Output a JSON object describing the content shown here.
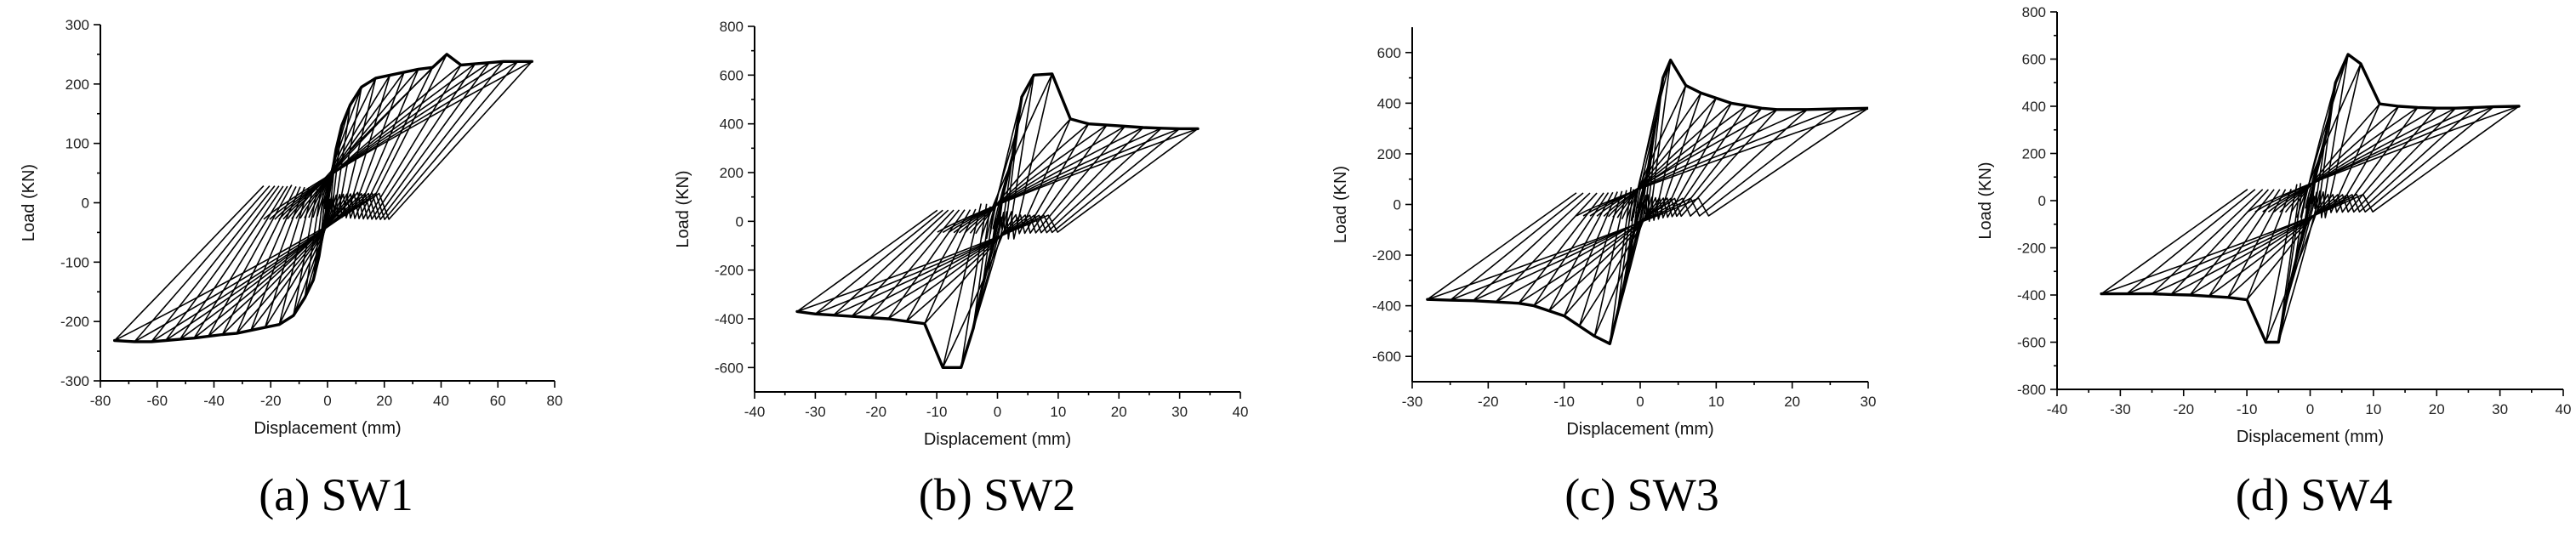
{
  "figure": {
    "captions": [
      "(a) SW1",
      "(b) SW2",
      "(c) SW3",
      "(d) SW4"
    ]
  },
  "chart_data": [
    {
      "type": "line",
      "title": "SW1",
      "caption": "(a) SW1",
      "xlabel": "Displacement (mm)",
      "ylabel": "Load (KN)",
      "xlim": [
        -80,
        80
      ],
      "ylim": [
        -300,
        300
      ],
      "xticks": [
        -80,
        -60,
        -40,
        -20,
        0,
        20,
        40,
        60,
        80
      ],
      "yticks": [
        -300,
        -200,
        -100,
        0,
        100,
        200,
        300
      ],
      "cycles": [
        {
          "peak_disp": 3,
          "peak_load": 90,
          "neg_disp": -3,
          "neg_load": -90
        },
        {
          "peak_disp": 5,
          "peak_load": 130,
          "neg_disp": -5,
          "neg_load": -130
        },
        {
          "peak_disp": 8,
          "peak_load": 165,
          "neg_disp": -8,
          "neg_load": -160
        },
        {
          "peak_disp": 12,
          "peak_load": 195,
          "neg_disp": -12,
          "neg_load": -190
        },
        {
          "peak_disp": 17,
          "peak_load": 210,
          "neg_disp": -17,
          "neg_load": -205
        },
        {
          "peak_disp": 22,
          "peak_load": 215,
          "neg_disp": -22,
          "neg_load": -210
        },
        {
          "peak_disp": 27,
          "peak_load": 220,
          "neg_disp": -27,
          "neg_load": -215
        },
        {
          "peak_disp": 32,
          "peak_load": 225,
          "neg_disp": -32,
          "neg_load": -220
        },
        {
          "peak_disp": 37,
          "peak_load": 228,
          "neg_disp": -37,
          "neg_load": -222
        },
        {
          "peak_disp": 42,
          "peak_load": 250,
          "neg_disp": -42,
          "neg_load": -225
        },
        {
          "peak_disp": 47,
          "peak_load": 232,
          "neg_disp": -47,
          "neg_load": -228
        },
        {
          "peak_disp": 52,
          "peak_load": 234,
          "neg_disp": -52,
          "neg_load": -230
        },
        {
          "peak_disp": 57,
          "peak_load": 236,
          "neg_disp": -57,
          "neg_load": -232
        },
        {
          "peak_disp": 62,
          "peak_load": 238,
          "neg_disp": -62,
          "neg_load": -234
        },
        {
          "peak_disp": 67,
          "peak_load": 238,
          "neg_disp": -68,
          "neg_load": -234
        },
        {
          "peak_disp": 72,
          "peak_load": 238,
          "neg_disp": -75,
          "neg_load": -232
        }
      ]
    },
    {
      "type": "line",
      "title": "SW2",
      "caption": "(b) SW2",
      "xlabel": "Displacement (mm)",
      "ylabel": "Load (KN)",
      "xlim": [
        -40,
        40
      ],
      "ylim": [
        -700,
        800
      ],
      "xticks": [
        -40,
        -30,
        -20,
        -10,
        0,
        10,
        20,
        30,
        40
      ],
      "yticks": [
        -600,
        -400,
        -200,
        0,
        200,
        400,
        600,
        800
      ],
      "cycles": [
        {
          "peak_disp": 1,
          "peak_load": 120,
          "neg_disp": -1,
          "neg_load": -120
        },
        {
          "peak_disp": 2.5,
          "peak_load": 270,
          "neg_disp": -2.5,
          "neg_load": -270
        },
        {
          "peak_disp": 4,
          "peak_load": 510,
          "neg_disp": -4,
          "neg_load": -440
        },
        {
          "peak_disp": 6,
          "peak_load": 600,
          "neg_disp": -6,
          "neg_load": -600
        },
        {
          "peak_disp": 9,
          "peak_load": 605,
          "neg_disp": -9,
          "neg_load": -600
        },
        {
          "peak_disp": 12,
          "peak_load": 420,
          "neg_disp": -12,
          "neg_load": -420
        },
        {
          "peak_disp": 15,
          "peak_load": 400,
          "neg_disp": -15,
          "neg_load": -410
        },
        {
          "peak_disp": 18,
          "peak_load": 395,
          "neg_disp": -18,
          "neg_load": -400
        },
        {
          "peak_disp": 21,
          "peak_load": 390,
          "neg_disp": -21,
          "neg_load": -395
        },
        {
          "peak_disp": 24,
          "peak_load": 385,
          "neg_disp": -24,
          "neg_load": -390
        },
        {
          "peak_disp": 27,
          "peak_load": 382,
          "neg_disp": -27,
          "neg_load": -385
        },
        {
          "peak_disp": 30,
          "peak_load": 380,
          "neg_disp": -30,
          "neg_load": -380
        },
        {
          "peak_disp": 33,
          "peak_load": 380,
          "neg_disp": -33,
          "neg_load": -370
        }
      ]
    },
    {
      "type": "line",
      "title": "SW3",
      "caption": "(c) SW3",
      "xlabel": "Displacement (mm)",
      "ylabel": "Load (KN)",
      "xlim": [
        -30,
        30
      ],
      "ylim": [
        -700,
        700
      ],
      "xticks": [
        -30,
        -20,
        -10,
        0,
        10,
        20,
        30
      ],
      "yticks": [
        -600,
        -400,
        -200,
        0,
        200,
        400,
        600
      ],
      "cycles": [
        {
          "peak_disp": 1,
          "peak_load": 130,
          "neg_disp": -1,
          "neg_load": -130
        },
        {
          "peak_disp": 2,
          "peak_load": 320,
          "neg_disp": -2,
          "neg_load": -300
        },
        {
          "peak_disp": 3,
          "peak_load": 500,
          "neg_disp": -3,
          "neg_load": -430
        },
        {
          "peak_disp": 4,
          "peak_load": 570,
          "neg_disp": -4,
          "neg_load": -550
        },
        {
          "peak_disp": 6,
          "peak_load": 470,
          "neg_disp": -6,
          "neg_load": -520
        },
        {
          "peak_disp": 8,
          "peak_load": 440,
          "neg_disp": -8,
          "neg_load": -480
        },
        {
          "peak_disp": 10,
          "peak_load": 420,
          "neg_disp": -10,
          "neg_load": -440
        },
        {
          "peak_disp": 12,
          "peak_load": 400,
          "neg_disp": -12,
          "neg_load": -420
        },
        {
          "peak_disp": 14,
          "peak_load": 390,
          "neg_disp": -14,
          "neg_load": -400
        },
        {
          "peak_disp": 16,
          "peak_load": 380,
          "neg_disp": -16,
          "neg_load": -390
        },
        {
          "peak_disp": 18,
          "peak_load": 375,
          "neg_disp": -19,
          "neg_load": -385
        },
        {
          "peak_disp": 22,
          "peak_load": 375,
          "neg_disp": -22,
          "neg_load": -380
        },
        {
          "peak_disp": 26,
          "peak_load": 378,
          "neg_disp": -25,
          "neg_load": -378
        },
        {
          "peak_disp": 30,
          "peak_load": 380,
          "neg_disp": -28,
          "neg_load": -375
        }
      ]
    },
    {
      "type": "line",
      "title": "SW4",
      "caption": "(d) SW4",
      "xlabel": "Displacement (mm)",
      "ylabel": "Load (KN)",
      "xlim": [
        -40,
        40
      ],
      "ylim": [
        -800,
        800
      ],
      "xticks": [
        -40,
        -30,
        -20,
        -10,
        0,
        10,
        20,
        30,
        40
      ],
      "yticks": [
        -800,
        -600,
        -400,
        -200,
        0,
        200,
        400,
        600,
        800
      ],
      "cycles": [
        {
          "peak_disp": 1,
          "peak_load": 120,
          "neg_disp": -1,
          "neg_load": -120
        },
        {
          "peak_disp": 2.5,
          "peak_load": 280,
          "neg_disp": -2.5,
          "neg_load": -280
        },
        {
          "peak_disp": 4,
          "peak_load": 500,
          "neg_disp": -4,
          "neg_load": -450
        },
        {
          "peak_disp": 6,
          "peak_load": 620,
          "neg_disp": -5,
          "neg_load": -600
        },
        {
          "peak_disp": 8,
          "peak_load": 580,
          "neg_disp": -7,
          "neg_load": -600
        },
        {
          "peak_disp": 11,
          "peak_load": 410,
          "neg_disp": -10,
          "neg_load": -420
        },
        {
          "peak_disp": 14,
          "peak_load": 400,
          "neg_disp": -13,
          "neg_load": -410
        },
        {
          "peak_disp": 17,
          "peak_load": 395,
          "neg_disp": -16,
          "neg_load": -405
        },
        {
          "peak_disp": 20,
          "peak_load": 392,
          "neg_disp": -19,
          "neg_load": -400
        },
        {
          "peak_disp": 23,
          "peak_load": 392,
          "neg_disp": -22,
          "neg_load": -398
        },
        {
          "peak_disp": 26,
          "peak_load": 395,
          "neg_disp": -25,
          "neg_load": -395
        },
        {
          "peak_disp": 29,
          "peak_load": 398,
          "neg_disp": -29,
          "neg_load": -395
        },
        {
          "peak_disp": 33,
          "peak_load": 400,
          "neg_disp": -33,
          "neg_load": -395
        }
      ]
    }
  ]
}
